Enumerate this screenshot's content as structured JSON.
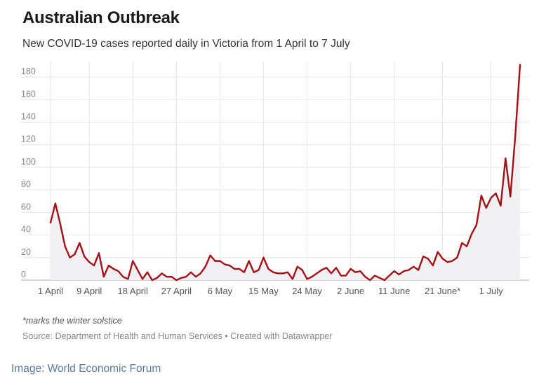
{
  "header": {
    "title": "Australian Outbreak",
    "subtitle": "New COVID-19 cases reported daily in Victoria from 1 April to 7 July"
  },
  "footer": {
    "note": "*marks the winter solstice",
    "source": "Source: Department of Health and Human Services • Created with Datawrapper",
    "credit": "Image: World Economic Forum"
  },
  "colors": {
    "line": "#a50f15",
    "area": "#f1f1f3",
    "grid": "#e6e6e6",
    "axis": "#aaaaaa"
  },
  "chart_data": {
    "type": "line",
    "title": "Australian Outbreak",
    "subtitle": "New COVID-19 cases reported daily in Victoria from 1 April to 7 July",
    "xlabel": "",
    "ylabel": "",
    "ylim": [
      0,
      190
    ],
    "y_ticks": [
      0,
      20,
      40,
      60,
      80,
      100,
      120,
      140,
      160,
      180
    ],
    "x_tick_labels": [
      "1 April",
      "9 April",
      "18 April",
      "27 April",
      "6 May",
      "15 May",
      "24 May",
      "2 June",
      "11 June",
      "21 June*",
      "1 July"
    ],
    "x_tick_positions": [
      "2020-04-01",
      "2020-04-09",
      "2020-04-18",
      "2020-04-27",
      "2020-05-06",
      "2020-05-15",
      "2020-05-24",
      "2020-06-02",
      "2020-06-11",
      "2020-06-21",
      "2020-07-01"
    ],
    "grid": true,
    "x_start": "2020-04-01",
    "x_end": "2020-07-07",
    "series": [
      {
        "values": [
          51,
          68,
          50,
          30,
          20,
          23,
          33,
          21,
          16,
          13,
          24,
          3,
          13,
          10,
          8,
          3,
          1,
          17,
          9,
          1,
          7,
          0,
          2,
          6,
          3,
          3,
          0,
          2,
          3,
          7,
          3,
          6,
          12,
          22,
          17,
          17,
          14,
          13,
          10,
          10,
          7,
          17,
          7,
          9,
          20,
          10,
          7,
          6,
          6,
          7,
          1,
          12,
          9,
          1,
          3,
          6,
          9,
          11,
          6,
          11,
          4,
          4,
          10,
          7,
          8,
          3,
          0,
          4,
          2,
          0,
          4,
          8,
          5,
          8,
          9,
          12,
          9,
          21,
          19,
          13,
          25,
          19,
          16,
          17,
          20,
          33,
          30,
          41,
          49,
          75,
          64,
          73,
          77,
          66,
          108,
          74,
          127,
          191
        ]
      }
    ]
  }
}
